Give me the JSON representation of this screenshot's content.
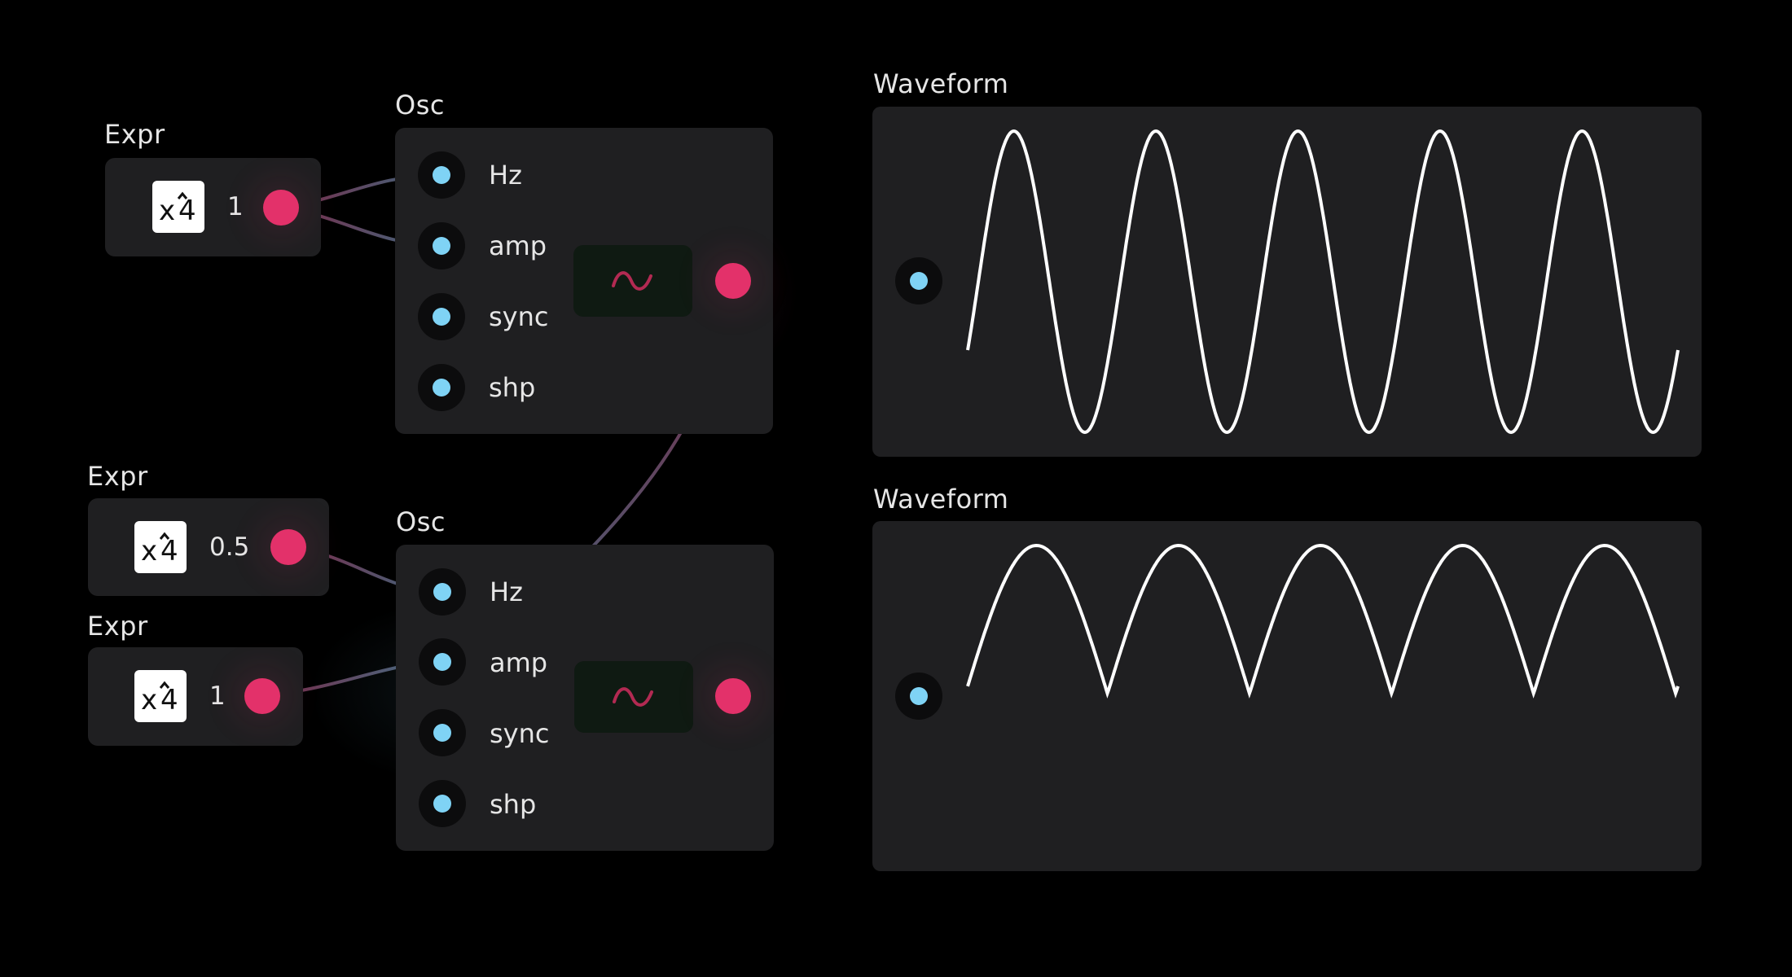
{
  "colors": {
    "background": "#000000",
    "panel": "#1f1f21",
    "output_port": "#e3316a",
    "input_port": "#7fd3f5",
    "wave_trace": "#ffffff"
  },
  "expr_nodes": [
    {
      "title": "Expr",
      "icon": "x-pow-4-icon",
      "value": "1"
    },
    {
      "title": "Expr",
      "icon": "x-pow-4-icon",
      "value": "0.5"
    },
    {
      "title": "Expr",
      "icon": "x-pow-4-icon",
      "value": "1"
    }
  ],
  "osc_nodes": [
    {
      "title": "Osc",
      "inputs": [
        "Hz",
        "amp",
        "sync",
        "shp"
      ],
      "wave_icon": "sine-wave-icon"
    },
    {
      "title": "Osc",
      "inputs": [
        "Hz",
        "amp",
        "sync",
        "shp"
      ],
      "wave_icon": "sine-wave-icon"
    }
  ],
  "waveform_nodes": [
    {
      "title": "Waveform",
      "shape": "sine",
      "cycles": 5
    },
    {
      "title": "Waveform",
      "shape": "rectified-sine",
      "cycles": 5
    }
  ]
}
